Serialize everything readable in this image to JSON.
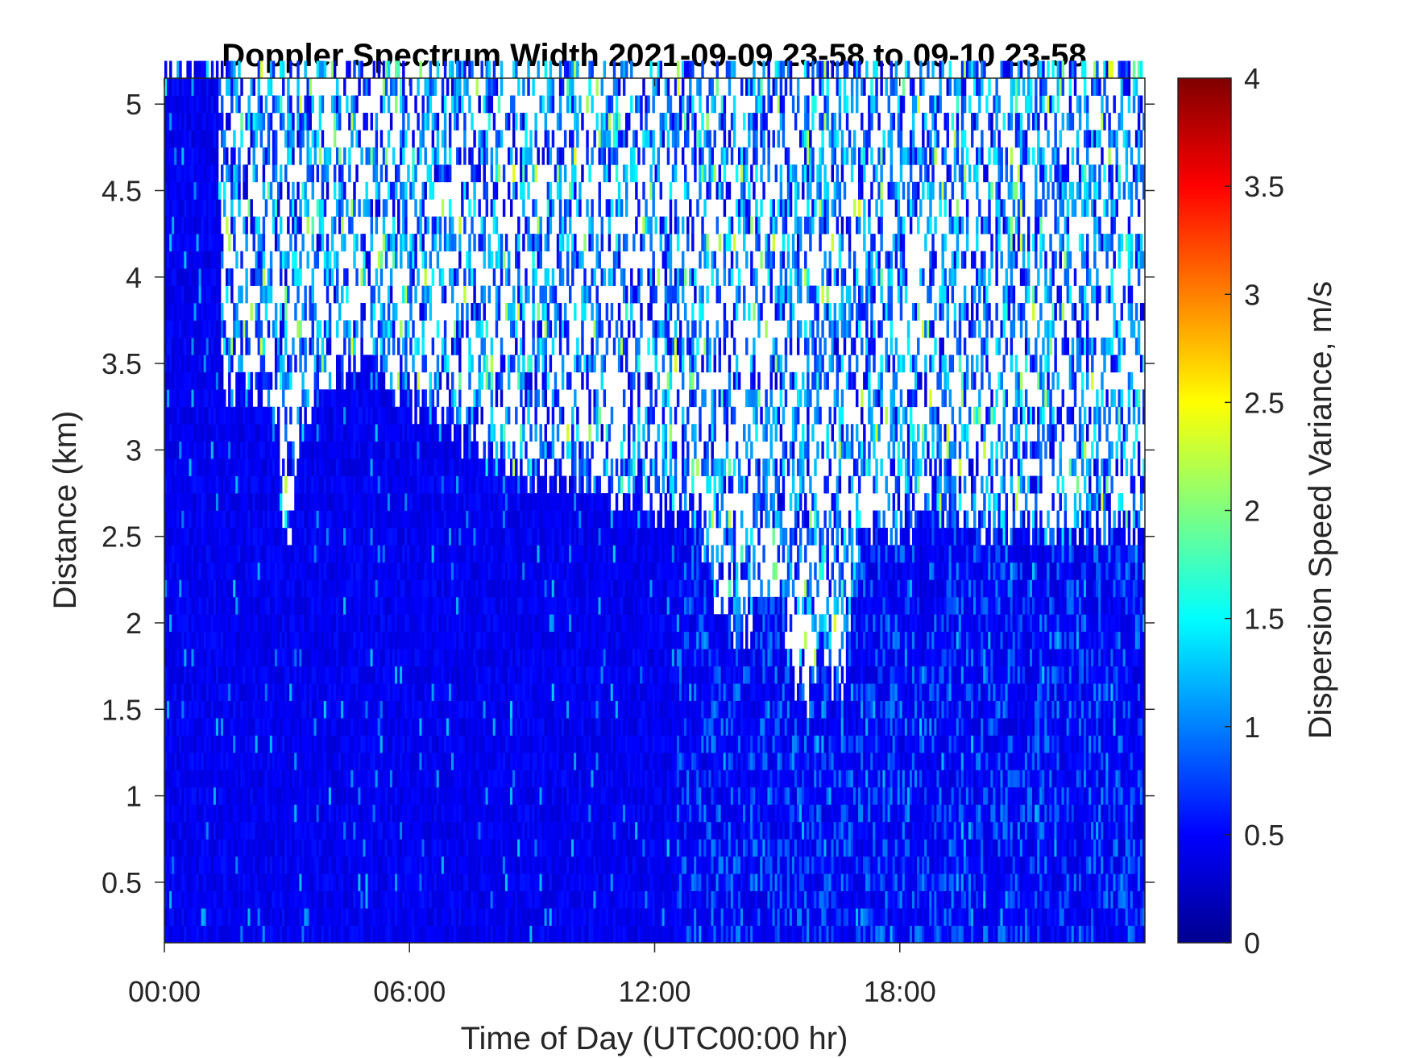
{
  "chart_data": {
    "type": "heatmap",
    "title": "Doppler Spectrum Width 2021-09-09 23-58 to 09-10 23-58",
    "xlabel": "Time of Day (UTC00:00 hr)",
    "ylabel": "Distance (km)",
    "xlim": [
      0,
      24
    ],
    "ylim": [
      0.15,
      5.15
    ],
    "x_ticks": [
      {
        "value": 0,
        "label": "00:00"
      },
      {
        "value": 6,
        "label": "06:00"
      },
      {
        "value": 12,
        "label": "12:00"
      },
      {
        "value": 18,
        "label": "18:00"
      }
    ],
    "y_ticks": [
      {
        "value": 0.5,
        "label": "0.5"
      },
      {
        "value": 1,
        "label": "1"
      },
      {
        "value": 1.5,
        "label": "1.5"
      },
      {
        "value": 2,
        "label": "2"
      },
      {
        "value": 2.5,
        "label": "2.5"
      },
      {
        "value": 3,
        "label": "3"
      },
      {
        "value": 3.5,
        "label": "3.5"
      },
      {
        "value": 4,
        "label": "4"
      },
      {
        "value": 4.5,
        "label": "4.5"
      },
      {
        "value": 5,
        "label": "5"
      }
    ],
    "colorbar": {
      "label": "Dispersion Speed Variance, m/s",
      "range": [
        0,
        4
      ],
      "colormap": "jet",
      "ticks": [
        {
          "value": 0,
          "label": "0"
        },
        {
          "value": 0.5,
          "label": "0.5"
        },
        {
          "value": 1,
          "label": "1"
        },
        {
          "value": 1.5,
          "label": "1.5"
        },
        {
          "value": 2,
          "label": "2"
        },
        {
          "value": 2.5,
          "label": "2.5"
        },
        {
          "value": 3,
          "label": "3"
        },
        {
          "value": 3.5,
          "label": "3.5"
        },
        {
          "value": 4,
          "label": "4"
        }
      ]
    },
    "signal_top_km": [
      [
        0,
        5.15
      ],
      [
        1.3,
        5.15
      ],
      [
        1.35,
        3.3
      ],
      [
        2.2,
        3.3
      ],
      [
        2.6,
        3.25
      ],
      [
        3.0,
        2.3
      ],
      [
        3.3,
        3.1
      ],
      [
        4.2,
        3.4
      ],
      [
        5.0,
        3.5
      ],
      [
        6.0,
        3.2
      ],
      [
        7.0,
        3.1
      ],
      [
        8.0,
        2.85
      ],
      [
        9.0,
        2.8
      ],
      [
        10.0,
        2.75
      ],
      [
        11.0,
        2.7
      ],
      [
        12.0,
        2.6
      ],
      [
        13.0,
        2.6
      ],
      [
        13.5,
        2.0
      ],
      [
        14.0,
        1.9
      ],
      [
        15.0,
        2.1
      ],
      [
        15.6,
        1.4
      ],
      [
        16.0,
        1.8
      ],
      [
        16.5,
        1.5
      ],
      [
        17.0,
        2.4
      ],
      [
        18.0,
        2.5
      ],
      [
        19.0,
        2.6
      ],
      [
        20.0,
        2.5
      ],
      [
        21.0,
        2.5
      ],
      [
        22.0,
        2.5
      ],
      [
        23.0,
        2.5
      ],
      [
        24.0,
        2.5
      ]
    ],
    "typical_value_ms": 0.45,
    "missing_data_color": "#ffffff"
  }
}
